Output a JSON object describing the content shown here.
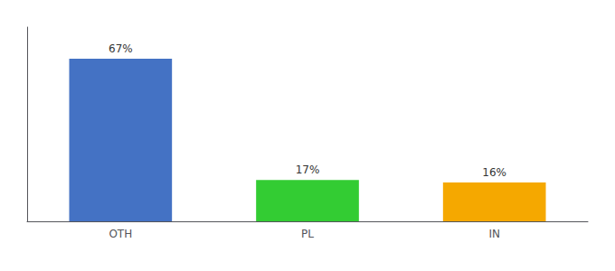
{
  "chart_data": {
    "type": "bar",
    "categories": [
      "OTH",
      "PL",
      "IN"
    ],
    "values": [
      67,
      17,
      16
    ],
    "value_labels": [
      "67%",
      "17%",
      "16%"
    ],
    "colors": [
      "#4472c4",
      "#33cc33",
      "#f5a800"
    ],
    "ylim": [
      0,
      80
    ],
    "data_labels": true,
    "tick_labels": "x",
    "grid": false
  }
}
